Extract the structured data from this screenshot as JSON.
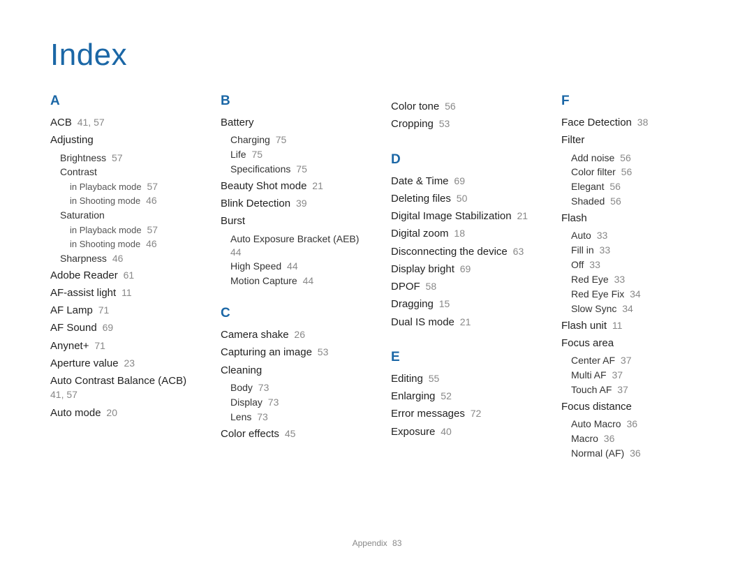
{
  "title": "Index",
  "footer": {
    "label": "Appendix",
    "page": "83"
  },
  "columns": [
    {
      "sections": [
        {
          "letter": "A",
          "items": [
            {
              "type": "entry",
              "text": "ACB",
              "pages": "41, 57"
            },
            {
              "type": "entry",
              "text": "Adjusting"
            },
            {
              "type": "sub1",
              "text": "Brightness",
              "pages": "57"
            },
            {
              "type": "sub1",
              "text": "Contrast"
            },
            {
              "type": "sub2",
              "text": "in Playback mode",
              "pages": "57"
            },
            {
              "type": "sub2",
              "text": "in Shooting mode",
              "pages": "46"
            },
            {
              "type": "sub1",
              "text": "Saturation"
            },
            {
              "type": "sub2",
              "text": "in Playback mode",
              "pages": "57"
            },
            {
              "type": "sub2",
              "text": "in Shooting mode",
              "pages": "46"
            },
            {
              "type": "sub1",
              "text": "Sharpness",
              "pages": "46"
            },
            {
              "type": "entry",
              "text": "Adobe Reader",
              "pages": "61"
            },
            {
              "type": "entry",
              "text": "AF-assist light",
              "pages": "11"
            },
            {
              "type": "entry",
              "text": "AF Lamp",
              "pages": "71"
            },
            {
              "type": "entry",
              "text": "AF Sound",
              "pages": "69"
            },
            {
              "type": "entry",
              "text": "Anynet+",
              "pages": "71"
            },
            {
              "type": "entry",
              "text": "Aperture value",
              "pages": "23"
            },
            {
              "type": "entry",
              "text": "Auto Contrast Balance (ACB)",
              "pages": "41, 57"
            },
            {
              "type": "entry",
              "text": "Auto mode",
              "pages": "20"
            }
          ]
        }
      ]
    },
    {
      "sections": [
        {
          "letter": "B",
          "items": [
            {
              "type": "entry",
              "text": "Battery"
            },
            {
              "type": "sub1",
              "text": "Charging",
              "pages": "75"
            },
            {
              "type": "sub1",
              "text": "Life",
              "pages": "75"
            },
            {
              "type": "sub1",
              "text": "Specifications",
              "pages": "75"
            },
            {
              "type": "entry",
              "text": "Beauty Shot mode",
              "pages": "21"
            },
            {
              "type": "entry",
              "text": "Blink Detection",
              "pages": "39"
            },
            {
              "type": "entry",
              "text": "Burst"
            },
            {
              "type": "sub1",
              "text": "Auto Exposure Bracket (AEB)",
              "pages": "44"
            },
            {
              "type": "sub1",
              "text": "High Speed",
              "pages": "44"
            },
            {
              "type": "sub1",
              "text": "Motion Capture",
              "pages": "44"
            }
          ]
        },
        {
          "letter": "C",
          "items": [
            {
              "type": "entry",
              "text": "Camera shake",
              "pages": "26"
            },
            {
              "type": "entry",
              "text": "Capturing an image",
              "pages": "53"
            },
            {
              "type": "entry",
              "text": "Cleaning"
            },
            {
              "type": "sub1",
              "text": "Body",
              "pages": "73"
            },
            {
              "type": "sub1",
              "text": "Display",
              "pages": "73"
            },
            {
              "type": "sub1",
              "text": "Lens",
              "pages": "73"
            },
            {
              "type": "entry",
              "text": "Color effects",
              "pages": "45"
            }
          ]
        }
      ]
    },
    {
      "sections": [
        {
          "letter": "",
          "items": [
            {
              "type": "entry",
              "text": "Color tone",
              "pages": "56"
            },
            {
              "type": "entry",
              "text": "Cropping",
              "pages": "53"
            }
          ]
        },
        {
          "letter": "D",
          "items": [
            {
              "type": "entry",
              "text": "Date & Time",
              "pages": "69"
            },
            {
              "type": "entry",
              "text": "Deleting files",
              "pages": "50"
            },
            {
              "type": "entry",
              "text": "Digital Image Stabilization",
              "pages": "21"
            },
            {
              "type": "entry",
              "text": "Digital zoom",
              "pages": "18"
            },
            {
              "type": "entry",
              "text": "Disconnecting the device",
              "pages": "63"
            },
            {
              "type": "entry",
              "text": "Display bright",
              "pages": "69"
            },
            {
              "type": "entry",
              "text": "DPOF",
              "pages": "58"
            },
            {
              "type": "entry",
              "text": "Dragging",
              "pages": "15"
            },
            {
              "type": "entry",
              "text": "Dual IS mode",
              "pages": "21"
            }
          ]
        },
        {
          "letter": "E",
          "items": [
            {
              "type": "entry",
              "text": "Editing",
              "pages": "55"
            },
            {
              "type": "entry",
              "text": "Enlarging",
              "pages": "52"
            },
            {
              "type": "entry",
              "text": "Error messages",
              "pages": "72"
            },
            {
              "type": "entry",
              "text": "Exposure",
              "pages": "40"
            }
          ]
        }
      ]
    },
    {
      "sections": [
        {
          "letter": "F",
          "items": [
            {
              "type": "entry",
              "text": "Face Detection",
              "pages": "38"
            },
            {
              "type": "entry",
              "text": "Filter"
            },
            {
              "type": "sub1",
              "text": "Add noise",
              "pages": "56"
            },
            {
              "type": "sub1",
              "text": "Color filter",
              "pages": "56"
            },
            {
              "type": "sub1",
              "text": "Elegant",
              "pages": "56"
            },
            {
              "type": "sub1",
              "text": "Shaded",
              "pages": "56"
            },
            {
              "type": "entry",
              "text": "Flash"
            },
            {
              "type": "sub1",
              "text": "Auto",
              "pages": "33"
            },
            {
              "type": "sub1",
              "text": "Fill in",
              "pages": "33"
            },
            {
              "type": "sub1",
              "text": "Off",
              "pages": "33"
            },
            {
              "type": "sub1",
              "text": "Red Eye",
              "pages": "33"
            },
            {
              "type": "sub1",
              "text": "Red Eye Fix",
              "pages": "34"
            },
            {
              "type": "sub1",
              "text": "Slow Sync",
              "pages": "34"
            },
            {
              "type": "entry",
              "text": "Flash unit",
              "pages": "11"
            },
            {
              "type": "entry",
              "text": "Focus area"
            },
            {
              "type": "sub1",
              "text": "Center AF",
              "pages": "37"
            },
            {
              "type": "sub1",
              "text": "Multi AF",
              "pages": "37"
            },
            {
              "type": "sub1",
              "text": "Touch AF",
              "pages": "37"
            },
            {
              "type": "entry",
              "text": "Focus distance"
            },
            {
              "type": "sub1",
              "text": "Auto Macro",
              "pages": "36"
            },
            {
              "type": "sub1",
              "text": "Macro",
              "pages": "36"
            },
            {
              "type": "sub1",
              "text": "Normal (AF)",
              "pages": "36"
            }
          ]
        }
      ]
    }
  ]
}
